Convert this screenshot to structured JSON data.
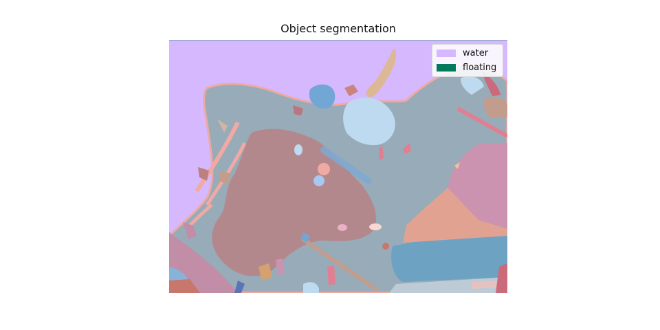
{
  "figure": {
    "title": "Object segmentation"
  },
  "legend": {
    "placement": "top-right",
    "items": [
      {
        "label": "water",
        "color": "#d5b8fe"
      },
      {
        "label": "floating",
        "color": "#007a5a"
      }
    ]
  },
  "palette": {
    "sky": "#d5b8fe",
    "boat_deck": "#97acb8",
    "hull": "#b3888d",
    "cushion_blue": "#6da2c2",
    "light_blue": "#bedaf0",
    "peach": "#e2a291",
    "pink": "#cb93af",
    "tan": "#ddb896",
    "salmon_rope": "#f0a9a3",
    "rose": "#c5707e"
  }
}
